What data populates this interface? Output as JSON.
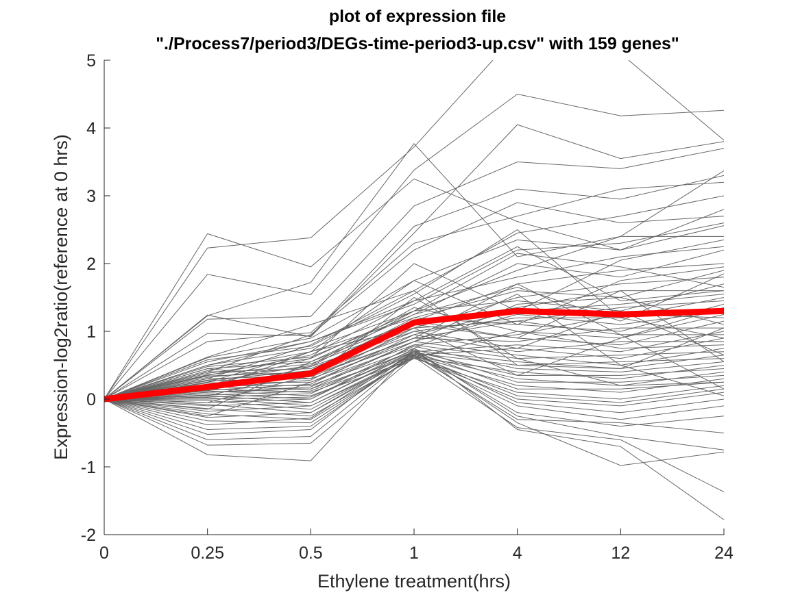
{
  "chart_data": {
    "type": "line",
    "title_lines": [
      "plot of expression file",
      "\"./Process7/period3/DEGs-time-period3-up.csv\" with 159 genes\""
    ],
    "xlabel": "Ethylene treatment(hrs)",
    "ylabel": "Expression-log2ratio(reference at 0 hrs)",
    "categories": [
      "0",
      "0.25",
      "0.5",
      "1",
      "4",
      "12",
      "24"
    ],
    "ylim": [
      -2,
      5
    ],
    "yticks": [
      "-2",
      "-1",
      "0",
      "1",
      "2",
      "3",
      "4",
      "5"
    ],
    "grid": false,
    "colors": {
      "genes": "#666666",
      "mean": "#ff0000",
      "axis": "#262626"
    },
    "series": [
      {
        "values": [
          0,
          2.44,
          1.95,
          3.25,
          2.62,
          2.2,
          2.56
        ]
      },
      {
        "values": [
          0,
          2.23,
          2.38,
          3.72,
          5.4,
          5.1,
          3.82
        ]
      },
      {
        "values": [
          0,
          1.84,
          1.54,
          3.38,
          4.5,
          4.18,
          4.26
        ]
      },
      {
        "values": [
          0,
          1.23,
          1.72,
          3.77,
          2.1,
          2.4,
          3.37
        ]
      },
      {
        "values": [
          0,
          1.24,
          0.92,
          2.45,
          4.05,
          3.55,
          3.8
        ]
      },
      {
        "values": [
          0,
          1.18,
          1.22,
          2.85,
          3.5,
          3.4,
          3.7
        ]
      },
      {
        "values": [
          0,
          0.97,
          0.93,
          2.55,
          3.1,
          2.95,
          3.3
        ]
      },
      {
        "values": [
          0,
          0.85,
          0.98,
          2.3,
          2.7,
          3.1,
          3.2
        ]
      },
      {
        "values": [
          0,
          0.62,
          1.1,
          1.6,
          2.45,
          2.7,
          3.0
        ]
      },
      {
        "values": [
          0,
          0.61,
          0.9,
          1.75,
          2.35,
          2.2,
          2.8
        ]
      },
      {
        "values": [
          0,
          0.55,
          0.85,
          1.4,
          2.2,
          2.3,
          2.6
        ]
      },
      {
        "values": [
          0,
          0.5,
          0.75,
          1.3,
          1.9,
          2.4,
          2.4
        ]
      },
      {
        "values": [
          0,
          0.48,
          0.62,
          1.25,
          2.0,
          1.8,
          2.2
        ]
      },
      {
        "values": [
          0,
          0.45,
          0.55,
          1.15,
          1.7,
          1.9,
          2.0
        ]
      },
      {
        "values": [
          0,
          0.42,
          0.7,
          1.2,
          1.6,
          1.5,
          1.9
        ]
      },
      {
        "values": [
          0,
          0.4,
          0.45,
          1.05,
          1.5,
          1.7,
          1.8
        ]
      },
      {
        "values": [
          0,
          0.38,
          0.6,
          1.3,
          1.45,
          1.3,
          1.7
        ]
      },
      {
        "values": [
          0,
          0.36,
          0.52,
          1.1,
          1.35,
          1.6,
          1.6
        ]
      },
      {
        "values": [
          0,
          0.34,
          0.4,
          0.95,
          1.3,
          1.4,
          1.55
        ]
      },
      {
        "values": [
          0,
          0.32,
          0.48,
          1.0,
          1.2,
          1.2,
          1.5
        ]
      },
      {
        "values": [
          0,
          0.3,
          0.35,
          0.9,
          1.15,
          1.35,
          1.45
        ]
      },
      {
        "values": [
          0,
          0.28,
          0.42,
          1.2,
          1.1,
          1.0,
          1.4
        ]
      },
      {
        "values": [
          0,
          0.27,
          0.3,
          0.85,
          1.25,
          1.1,
          1.3
        ]
      },
      {
        "values": [
          0,
          0.25,
          0.5,
          1.35,
          1.0,
          0.9,
          1.25
        ]
      },
      {
        "values": [
          0,
          0.24,
          0.25,
          0.8,
          0.95,
          1.25,
          1.2
        ]
      },
      {
        "values": [
          0,
          0.22,
          0.38,
          1.1,
          0.9,
          0.8,
          1.15
        ]
      },
      {
        "values": [
          0,
          0.2,
          0.2,
          0.75,
          1.4,
          1.5,
          1.1
        ]
      },
      {
        "values": [
          0,
          0.19,
          0.33,
          0.9,
          0.85,
          1.05,
          1.05
        ]
      },
      {
        "values": [
          0,
          0.18,
          0.15,
          0.7,
          0.8,
          0.7,
          1.0
        ]
      },
      {
        "values": [
          0,
          0.16,
          0.28,
          1.05,
          1.15,
          0.95,
          0.95
        ]
      },
      {
        "values": [
          0,
          0.15,
          0.1,
          0.65,
          0.75,
          0.6,
          0.9
        ]
      },
      {
        "values": [
          0,
          0.13,
          0.22,
          0.95,
          0.7,
          0.85,
          0.85
        ]
      },
      {
        "values": [
          0,
          0.12,
          0.05,
          0.6,
          1.0,
          0.75,
          0.8
        ]
      },
      {
        "values": [
          0,
          0.1,
          0.18,
          0.85,
          0.65,
          0.5,
          0.75
        ]
      },
      {
        "values": [
          0,
          0.08,
          0.0,
          0.8,
          0.6,
          0.65,
          0.7
        ]
      },
      {
        "values": [
          0,
          0.06,
          0.12,
          0.72,
          0.55,
          0.45,
          0.65
        ]
      },
      {
        "values": [
          0,
          0.05,
          -0.05,
          0.68,
          0.5,
          0.55,
          0.6
        ]
      },
      {
        "values": [
          0,
          0.03,
          0.08,
          0.78,
          0.45,
          0.4,
          0.55
        ]
      },
      {
        "values": [
          0,
          0.02,
          -0.1,
          0.62,
          0.4,
          0.3,
          0.5
        ]
      },
      {
        "values": [
          0,
          0.0,
          0.03,
          0.7,
          0.35,
          0.35,
          0.45
        ]
      },
      {
        "values": [
          0,
          -0.02,
          -0.15,
          0.66,
          0.3,
          0.2,
          0.4
        ]
      },
      {
        "values": [
          0,
          -0.05,
          0.0,
          0.74,
          0.25,
          0.25,
          0.35
        ]
      },
      {
        "values": [
          0,
          -0.08,
          -0.2,
          0.64,
          0.2,
          0.1,
          0.3
        ]
      },
      {
        "values": [
          0,
          -0.1,
          -0.05,
          0.7,
          0.15,
          0.15,
          0.25
        ]
      },
      {
        "values": [
          0,
          -0.14,
          -0.25,
          0.6,
          0.1,
          0.0,
          0.2
        ]
      },
      {
        "values": [
          0,
          -0.18,
          -0.1,
          0.65,
          0.05,
          -0.05,
          0.15
        ]
      },
      {
        "values": [
          0,
          -0.22,
          -0.3,
          0.62,
          0.0,
          -0.1,
          0.1
        ]
      },
      {
        "values": [
          0,
          -0.27,
          -0.2,
          0.68,
          -0.05,
          -0.2,
          0.0
        ]
      },
      {
        "values": [
          0,
          -0.32,
          -0.35,
          0.63,
          -0.1,
          -0.3,
          -0.1
        ]
      },
      {
        "values": [
          0,
          -0.38,
          -0.28,
          0.7,
          -0.2,
          -0.4,
          -0.25
        ]
      },
      {
        "values": [
          0,
          -0.45,
          -0.4,
          0.65,
          -0.3,
          -0.35,
          -0.5
        ]
      },
      {
        "values": [
          0,
          -0.52,
          -0.45,
          0.72,
          -0.25,
          -0.55,
          -0.75
        ]
      },
      {
        "values": [
          0,
          -0.6,
          -0.55,
          0.68,
          -0.35,
          -0.98,
          -0.78
        ]
      },
      {
        "values": [
          0,
          -0.68,
          -0.65,
          0.62,
          -0.42,
          -0.6,
          -1.37
        ]
      },
      {
        "values": [
          0,
          -0.82,
          -0.91,
          0.75,
          -0.45,
          -0.7,
          -1.78
        ]
      },
      {
        "values": [
          0,
          0.58,
          0.78,
          1.55,
          2.5,
          1.2,
          0.9
        ]
      },
      {
        "values": [
          0,
          0.35,
          0.65,
          1.45,
          1.8,
          2.1,
          2.25
        ]
      },
      {
        "values": [
          0,
          0.12,
          0.48,
          1.3,
          2.15,
          1.95,
          1.65
        ]
      },
      {
        "values": [
          0,
          0.25,
          0.7,
          1.05,
          0.35,
          0.9,
          1.35
        ]
      },
      {
        "values": [
          0,
          0.45,
          0.3,
          1.5,
          0.6,
          0.2,
          0.25
        ]
      },
      {
        "values": [
          0,
          -0.15,
          0.55,
          1.25,
          1.65,
          1.15,
          1.85
        ]
      },
      {
        "values": [
          0,
          0.05,
          0.4,
          1.15,
          0.9,
          1.6,
          0.55
        ]
      },
      {
        "values": [
          0,
          0.2,
          0.6,
          2.0,
          1.3,
          2.05,
          2.35
        ]
      },
      {
        "values": [
          0,
          0.3,
          0.8,
          1.6,
          0.5,
          0.45,
          1.05
        ]
      },
      {
        "values": [
          0,
          -0.25,
          0.25,
          0.9,
          1.7,
          0.95,
          0.15
        ]
      },
      {
        "values": [
          0,
          0.4,
          0.95,
          2.2,
          2.9,
          2.6,
          2.7
        ]
      },
      {
        "values": [
          0,
          0.15,
          0.7,
          1.75,
          1.1,
          1.75,
          1.95
        ]
      },
      {
        "values": [
          0,
          -0.05,
          0.35,
          1.0,
          0.75,
          1.3,
          0.65
        ]
      },
      {
        "values": [
          0,
          0.5,
          0.85,
          1.45,
          2.25,
          1.45,
          1.6
        ]
      },
      {
        "values": [
          0,
          0.1,
          0.15,
          0.85,
          1.55,
          0.5,
          0.05
        ]
      }
    ],
    "mean_values": [
      0,
      0.18,
      0.38,
      1.13,
      1.3,
      1.25,
      1.3
    ]
  }
}
